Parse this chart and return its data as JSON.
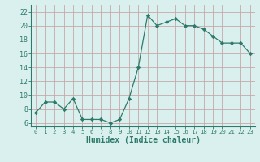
{
  "x": [
    0,
    1,
    2,
    3,
    4,
    5,
    6,
    7,
    8,
    9,
    10,
    11,
    12,
    13,
    14,
    15,
    16,
    17,
    18,
    19,
    20,
    21,
    22,
    23
  ],
  "y": [
    7.5,
    9.0,
    9.0,
    8.0,
    9.5,
    6.5,
    6.5,
    6.5,
    6.0,
    6.5,
    9.5,
    14.0,
    21.5,
    20.0,
    20.5,
    21.0,
    20.0,
    20.0,
    19.5,
    18.5,
    17.5,
    17.5,
    17.5,
    16.0
  ],
  "xlabel": "Humidex (Indice chaleur)",
  "xlim": [
    -0.5,
    23.5
  ],
  "ylim": [
    5.5,
    23.0
  ],
  "yticks": [
    6,
    8,
    10,
    12,
    14,
    16,
    18,
    20,
    22
  ],
  "xtick_labels": [
    "0",
    "1",
    "2",
    "3",
    "4",
    "5",
    "6",
    "7",
    "8",
    "9",
    "10",
    "11",
    "12",
    "13",
    "14",
    "15",
    "16",
    "17",
    "18",
    "19",
    "20",
    "21",
    "22",
    "23"
  ],
  "line_color": "#2d7a6b",
  "marker_color": "#2d7a6b",
  "bg_color": "#d9f0ee",
  "grid_color": "#c8a8a8",
  "spine_color": "#2d7a6b",
  "tick_color": "#2d7a6b",
  "label_color": "#2d7a6b"
}
